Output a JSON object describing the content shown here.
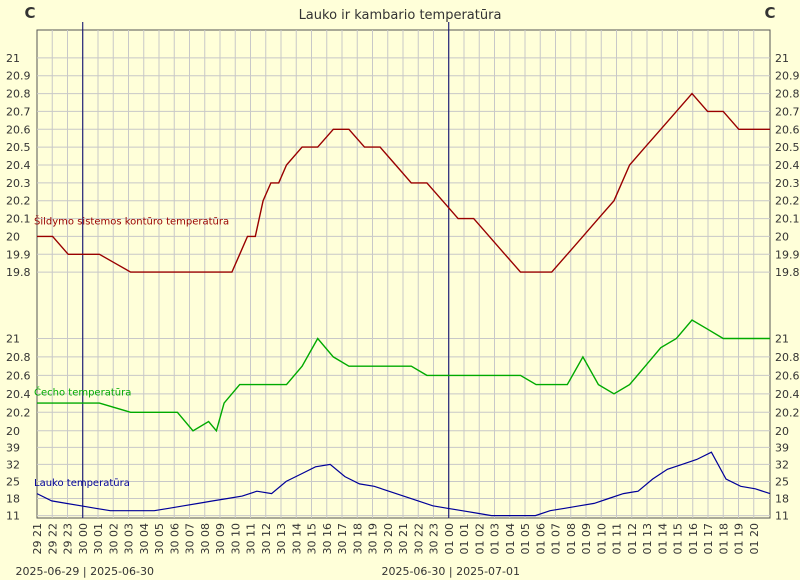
{
  "chart_data": {
    "type": "line",
    "title": "Lauko ir kambario temperatūra",
    "yunit_left": "C",
    "yunit_right": "C",
    "grid": true,
    "x_ticks": [
      "29 21",
      "29 22",
      "29 23",
      "30 00",
      "30 01",
      "30 02",
      "30 03",
      "30 04",
      "30 05",
      "30 06",
      "30 07",
      "30 08",
      "30 09",
      "30 10",
      "30 11",
      "30 12",
      "30 13",
      "30 14",
      "30 15",
      "30 16",
      "30 17",
      "30 18",
      "30 19",
      "30 20",
      "30 21",
      "30 22",
      "30 23",
      "01 00",
      "01 01",
      "01 02",
      "01 03",
      "01 04",
      "01 05",
      "01 06",
      "01 07",
      "01 08",
      "01 09",
      "01 10",
      "01 11",
      "01 12",
      "01 13",
      "01 14",
      "01 15",
      "01 16",
      "01 17",
      "01 18",
      "01 19",
      "01 20"
    ],
    "day_dividers": [
      {
        "tick": "30 00",
        "label": "2025-06-29 | 2025-06-30"
      },
      {
        "tick": "01 00",
        "label": "2025-06-30 | 2025-07-01"
      }
    ],
    "panels": [
      {
        "name": "Šildymo sistemos kontūro temperatūra",
        "color": "#990000",
        "ylim": [
          19.7,
          21.1
        ],
        "yticks": [
          "19.8",
          "19.9",
          "20",
          "20.1",
          "20.2",
          "20.3",
          "20.4",
          "20.5",
          "20.6",
          "20.7",
          "20.8",
          "20.9",
          "21"
        ],
        "points": [
          [
            0,
            20.0
          ],
          [
            1,
            20.0
          ],
          [
            2,
            19.9
          ],
          [
            3,
            19.9
          ],
          [
            4,
            19.9
          ],
          [
            5,
            19.85
          ],
          [
            6,
            19.8
          ],
          [
            7,
            19.8
          ],
          [
            8,
            19.8
          ],
          [
            9,
            19.8
          ],
          [
            10,
            19.8
          ],
          [
            11,
            19.8
          ],
          [
            12,
            19.8
          ],
          [
            12.5,
            19.8
          ],
          [
            13,
            19.9
          ],
          [
            13.5,
            20.0
          ],
          [
            14,
            20.0
          ],
          [
            14.5,
            20.2
          ],
          [
            15,
            20.3
          ],
          [
            15.5,
            20.3
          ],
          [
            16,
            20.4
          ],
          [
            17,
            20.5
          ],
          [
            18,
            20.5
          ],
          [
            19,
            20.6
          ],
          [
            20,
            20.6
          ],
          [
            21,
            20.5
          ],
          [
            22,
            20.5
          ],
          [
            23,
            20.4
          ],
          [
            24,
            20.3
          ],
          [
            25,
            20.3
          ],
          [
            26,
            20.2
          ],
          [
            27,
            20.1
          ],
          [
            28,
            20.1
          ],
          [
            29,
            20.0
          ],
          [
            30,
            19.9
          ],
          [
            31,
            19.8
          ],
          [
            32,
            19.8
          ],
          [
            33,
            19.8
          ],
          [
            34,
            19.9
          ],
          [
            35,
            20.0
          ],
          [
            36,
            20.1
          ],
          [
            37,
            20.2
          ],
          [
            38,
            20.4
          ],
          [
            39,
            20.5
          ],
          [
            40,
            20.6
          ],
          [
            41,
            20.7
          ],
          [
            42,
            20.8
          ],
          [
            43,
            20.7
          ],
          [
            44,
            20.7
          ],
          [
            45,
            20.6
          ],
          [
            46,
            20.6
          ],
          [
            47,
            20.6
          ]
        ]
      },
      {
        "name": "Čecho temperatūra",
        "color": "#00aa00",
        "ylim": [
          19.9,
          21.2
        ],
        "yticks": [
          "20",
          "20.2",
          "20.4",
          "20.6",
          "20.8",
          "21"
        ],
        "points": [
          [
            0,
            20.3
          ],
          [
            1,
            20.3
          ],
          [
            2,
            20.3
          ],
          [
            3,
            20.3
          ],
          [
            4,
            20.3
          ],
          [
            5,
            20.25
          ],
          [
            6,
            20.2
          ],
          [
            7,
            20.2
          ],
          [
            8,
            20.2
          ],
          [
            9,
            20.2
          ],
          [
            10,
            20.0
          ],
          [
            11,
            20.1
          ],
          [
            11.5,
            20.0
          ],
          [
            12,
            20.3
          ],
          [
            13,
            20.5
          ],
          [
            14,
            20.5
          ],
          [
            15,
            20.5
          ],
          [
            16,
            20.5
          ],
          [
            17,
            20.7
          ],
          [
            18,
            21.0
          ],
          [
            19,
            20.8
          ],
          [
            20,
            20.7
          ],
          [
            21,
            20.7
          ],
          [
            22,
            20.7
          ],
          [
            23,
            20.7
          ],
          [
            24,
            20.7
          ],
          [
            25,
            20.6
          ],
          [
            26,
            20.6
          ],
          [
            27,
            20.6
          ],
          [
            28,
            20.6
          ],
          [
            29,
            20.6
          ],
          [
            30,
            20.6
          ],
          [
            31,
            20.6
          ],
          [
            32,
            20.5
          ],
          [
            33,
            20.5
          ],
          [
            34,
            20.5
          ],
          [
            35,
            20.8
          ],
          [
            36,
            20.5
          ],
          [
            37,
            20.4
          ],
          [
            38,
            20.5
          ],
          [
            39,
            20.7
          ],
          [
            40,
            20.9
          ],
          [
            41,
            21.0
          ],
          [
            42,
            21.2
          ],
          [
            43,
            21.1
          ],
          [
            44,
            21.0
          ],
          [
            45,
            21.0
          ],
          [
            46,
            21.0
          ],
          [
            47,
            21.0
          ]
        ]
      },
      {
        "name": "Lauko temperatūra",
        "color": "#000099",
        "ylim": [
          10,
          42
        ],
        "yticks": [
          "11",
          "18",
          "25",
          "32",
          "39"
        ],
        "points": [
          [
            0,
            20
          ],
          [
            1,
            17
          ],
          [
            2,
            16
          ],
          [
            3,
            15
          ],
          [
            4,
            14
          ],
          [
            5,
            13
          ],
          [
            6,
            13
          ],
          [
            7,
            13
          ],
          [
            8,
            13
          ],
          [
            9,
            14
          ],
          [
            10,
            15
          ],
          [
            11,
            16
          ],
          [
            12,
            17
          ],
          [
            13,
            18
          ],
          [
            14,
            19
          ],
          [
            15,
            21
          ],
          [
            16,
            20
          ],
          [
            17,
            25
          ],
          [
            18,
            28
          ],
          [
            19,
            31
          ],
          [
            20,
            32
          ],
          [
            21,
            27
          ],
          [
            22,
            24
          ],
          [
            23,
            23
          ],
          [
            24,
            21
          ],
          [
            25,
            19
          ],
          [
            26,
            17
          ],
          [
            27,
            15
          ],
          [
            28,
            14
          ],
          [
            29,
            13
          ],
          [
            30,
            12
          ],
          [
            31,
            11
          ],
          [
            32,
            11
          ],
          [
            33,
            11
          ],
          [
            34,
            11
          ],
          [
            35,
            13
          ],
          [
            36,
            14
          ],
          [
            37,
            15
          ],
          [
            38,
            16
          ],
          [
            39,
            18
          ],
          [
            40,
            20
          ],
          [
            41,
            21
          ],
          [
            42,
            26
          ],
          [
            43,
            30
          ],
          [
            44,
            32
          ],
          [
            45,
            34
          ],
          [
            46,
            37
          ],
          [
            47,
            26
          ],
          [
            48,
            23
          ],
          [
            49,
            22
          ],
          [
            50,
            20
          ]
        ]
      }
    ]
  }
}
